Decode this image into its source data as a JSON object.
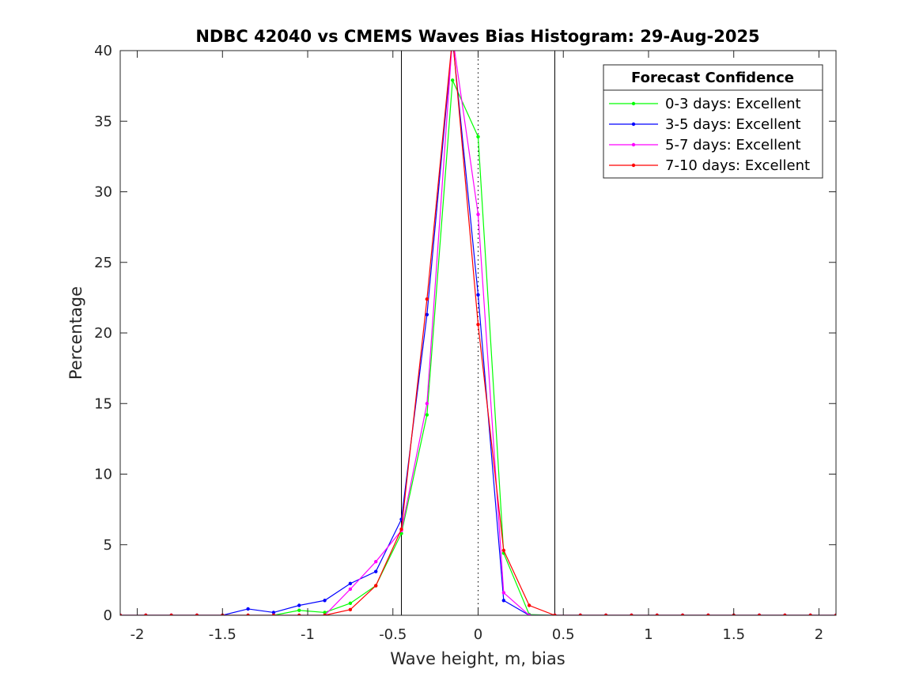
{
  "chart_data": {
    "type": "line",
    "title": "NDBC 42040 vs CMEMS Waves Bias Histogram: 29-Aug-2025",
    "xlabel": "Wave height, m, bias",
    "ylabel": "Percentage",
    "xlim": [
      -2.1,
      2.1
    ],
    "ylim": [
      0,
      40
    ],
    "xticks": [
      -2,
      -1.5,
      -1,
      -0.5,
      0,
      0.5,
      1,
      1.5,
      2
    ],
    "xtick_labels": [
      "-2",
      "-1.5",
      "-1",
      "-0.5",
      "0",
      "0.5",
      "1",
      "1.5",
      "2"
    ],
    "yticks": [
      0,
      5,
      10,
      15,
      20,
      25,
      30,
      35,
      40
    ],
    "ytick_labels": [
      "0",
      "5",
      "10",
      "15",
      "20",
      "25",
      "30",
      "35",
      "40"
    ],
    "reference_lines": [
      {
        "x": -0.45,
        "style": "solid",
        "color": "#000000"
      },
      {
        "x": 0.45,
        "style": "solid",
        "color": "#000000"
      },
      {
        "x": 0,
        "style": "dotted",
        "color": "#000000"
      }
    ],
    "legend": {
      "title": "Forecast Confidence",
      "position": "top-right"
    },
    "x": [
      -2.1,
      -1.95,
      -1.8,
      -1.65,
      -1.5,
      -1.35,
      -1.2,
      -1.05,
      -0.9,
      -0.75,
      -0.6,
      -0.45,
      -0.3,
      -0.15,
      0,
      0.15,
      0.3,
      0.45,
      0.6,
      0.75,
      0.9,
      1.05,
      1.2,
      1.35,
      1.5,
      1.65,
      1.8,
      1.95,
      2.1
    ],
    "series": [
      {
        "name": "0-3 days: Excellent",
        "color": "#00ff00",
        "values": [
          0,
          0,
          0,
          0,
          0,
          0,
          0,
          0.35,
          0.2,
          0.85,
          2.1,
          5.8,
          14.2,
          37.9,
          33.9,
          4.4,
          0.05,
          0,
          0,
          0,
          0,
          0,
          0,
          0,
          0,
          0,
          0,
          0,
          0
        ]
      },
      {
        "name": "3-5 days: Excellent",
        "color": "#0000ff",
        "values": [
          0,
          0,
          0,
          0,
          0,
          0.45,
          0.2,
          0.7,
          1.05,
          2.25,
          3.1,
          6.8,
          21.3,
          40.8,
          22.7,
          1.05,
          0,
          0,
          0,
          0,
          0,
          0,
          0,
          0,
          0,
          0,
          0,
          0,
          0
        ]
      },
      {
        "name": "5-7 days: Excellent",
        "color": "#ff00ff",
        "values": [
          0,
          0,
          0,
          0,
          0,
          0,
          0,
          0,
          0,
          1.85,
          3.8,
          6.0,
          15.0,
          41.0,
          28.4,
          1.6,
          0,
          0,
          0,
          0,
          0,
          0,
          0,
          0,
          0,
          0,
          0,
          0,
          0
        ]
      },
      {
        "name": "7-10 days: Excellent",
        "color": "#ff0000",
        "values": [
          0,
          0,
          0,
          0,
          0,
          0,
          0,
          0,
          0,
          0.4,
          2.1,
          6.1,
          22.4,
          41.0,
          20.6,
          4.6,
          0.7,
          0,
          0,
          0,
          0,
          0,
          0,
          0,
          0,
          0,
          0,
          0,
          0
        ]
      }
    ]
  }
}
